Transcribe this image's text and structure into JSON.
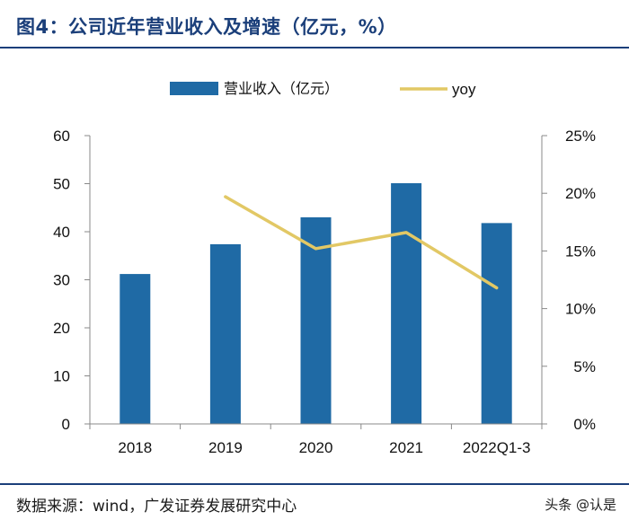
{
  "figure": {
    "title": "图4：公司近年营业收入及增速（亿元，%）",
    "source": "数据来源：wind，广发证券发展研究中心",
    "watermark": "头条 @认是"
  },
  "chart_data": {
    "type": "bar+line",
    "title": "公司近年营业收入及增速（亿元，%）",
    "categories": [
      "2018",
      "2019",
      "2020",
      "2021",
      "2022Q1-3"
    ],
    "series": [
      {
        "name": "营业收入（亿元）",
        "kind": "bar",
        "axis": "left",
        "values": [
          31.2,
          37.4,
          43.0,
          50.1,
          41.8
        ],
        "color": "#1f6aa5"
      },
      {
        "name": "yoy",
        "kind": "line",
        "axis": "right",
        "values": [
          null,
          19.7,
          15.2,
          16.6,
          11.8
        ],
        "color": "#e2c865"
      }
    ],
    "y_left": {
      "min": 0,
      "max": 60,
      "ticks": [
        0,
        10,
        20,
        30,
        40,
        50,
        60
      ],
      "ticklabels": [
        "0",
        "10",
        "20",
        "30",
        "40",
        "50",
        "60"
      ]
    },
    "y_right": {
      "min": 0,
      "max": 25,
      "ticks": [
        0,
        5,
        10,
        15,
        20,
        25
      ],
      "ticklabels": [
        "0%",
        "5%",
        "10%",
        "15%",
        "20%",
        "25%"
      ]
    },
    "legend": {
      "position": "top",
      "entries": [
        "营业收入（亿元）",
        "yoy"
      ]
    },
    "grid": false
  }
}
